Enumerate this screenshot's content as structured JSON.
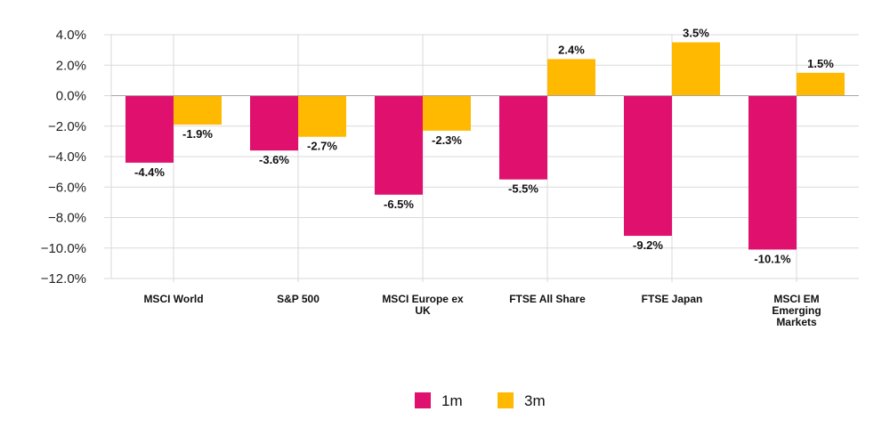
{
  "chart_data": {
    "type": "bar",
    "categories": [
      [
        "MSCI World"
      ],
      [
        "S&P 500"
      ],
      [
        "MSCI Europe ex",
        "UK"
      ],
      [
        "FTSE All Share"
      ],
      [
        "FTSE Japan"
      ],
      [
        "MSCI EM",
        "Emerging",
        "Markets"
      ]
    ],
    "series": [
      {
        "name": "1m",
        "color": "#E0106E",
        "values": [
          -4.4,
          -3.6,
          -6.5,
          -5.5,
          -9.2,
          -10.1
        ],
        "labels": [
          "-4.4%",
          "-3.6%",
          "-6.5%",
          "-5.5%",
          "-9.2%",
          "-10.1%"
        ]
      },
      {
        "name": "3m",
        "color": "#FFB900",
        "values": [
          -1.9,
          -2.7,
          -2.3,
          2.4,
          3.5,
          1.5
        ],
        "labels": [
          "-1.9%",
          "-2.7%",
          "-2.3%",
          "2.4%",
          "3.5%",
          "1.5%"
        ]
      }
    ],
    "ylim": [
      -12,
      4
    ],
    "yticks": [
      4,
      2,
      0,
      -2,
      -4,
      -6,
      -8,
      -10,
      -12
    ],
    "ytick_labels": [
      "4.0%",
      "2.0%",
      "0.0%",
      "−2.0%",
      "−4.0%",
      "−6.0%",
      "−8.0%",
      "−10.0%",
      "−12.0%"
    ],
    "grid": true,
    "legend_position": "bottom-center",
    "title": "",
    "xlabel": "",
    "ylabel": ""
  }
}
